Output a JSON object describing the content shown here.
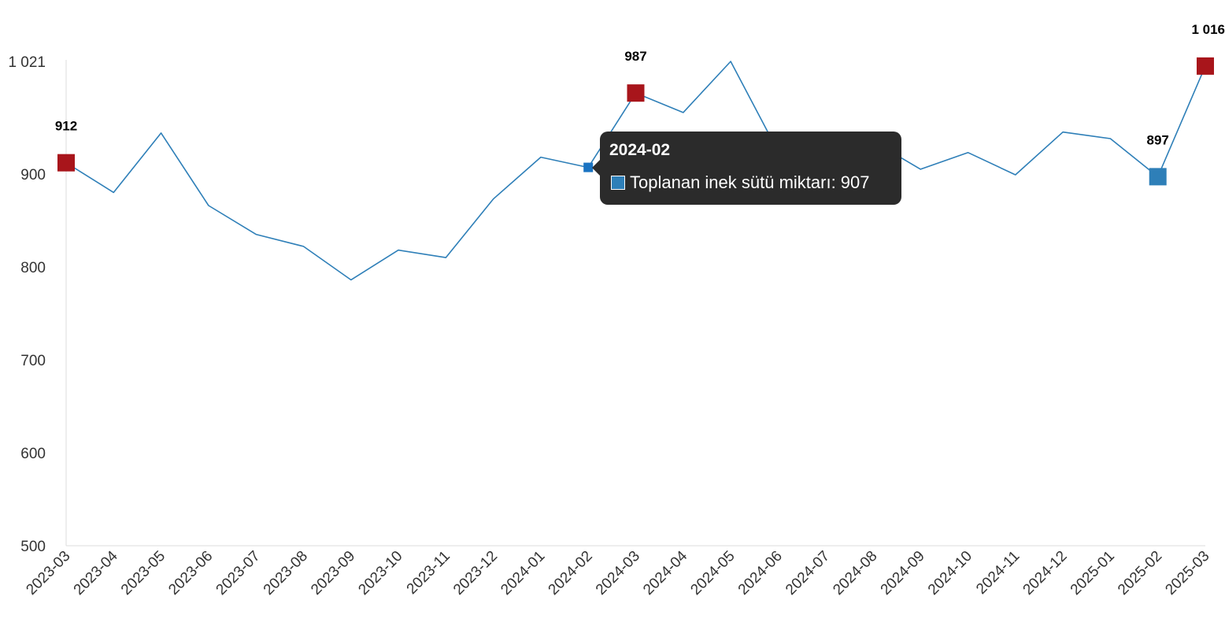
{
  "chart_data": {
    "type": "line",
    "title": "",
    "xlabel": "",
    "ylabel": "",
    "categories": [
      "2023-03",
      "2023-04",
      "2023-05",
      "2023-06",
      "2023-07",
      "2023-08",
      "2023-09",
      "2023-10",
      "2023-11",
      "2023-12",
      "2024-01",
      "2024-02",
      "2024-03",
      "2024-04",
      "2024-05",
      "2024-06",
      "2024-07",
      "2024-08",
      "2024-09",
      "2024-10",
      "2024-11",
      "2024-12",
      "2025-01",
      "2025-02",
      "2025-03"
    ],
    "series": [
      {
        "name": "Toplanan inek sütü miktarı",
        "color": "#2e7fb8",
        "values": [
          912,
          880,
          944,
          866,
          835,
          822,
          786,
          818,
          810,
          873,
          918,
          907,
          987,
          966,
          1021,
          924,
          940,
          935,
          905,
          923,
          899,
          945,
          938,
          897,
          1016
        ]
      }
    ],
    "ylim": [
      500,
      1021
    ],
    "yticks": [
      "500",
      "600",
      "700",
      "800",
      "900",
      "1 021"
    ],
    "ytick_values": [
      500,
      600,
      700,
      800,
      900,
      1021
    ],
    "grid": false,
    "highlight_points": [
      {
        "index": 0,
        "label": "912",
        "color": "#a8151b"
      },
      {
        "index": 12,
        "label": "987",
        "color": "#a8151b"
      },
      {
        "index": 23,
        "label": "897",
        "color": "#2e7fb8"
      },
      {
        "index": 24,
        "label": "1 016",
        "color": "#a8151b"
      }
    ],
    "hover_index": 11,
    "hover_color": "#1a73c2"
  },
  "tooltip": {
    "title": "2024-02",
    "series_label": "Toplanan inek sütü miktarı: 907",
    "swatch_color": "#2e7fb8"
  }
}
